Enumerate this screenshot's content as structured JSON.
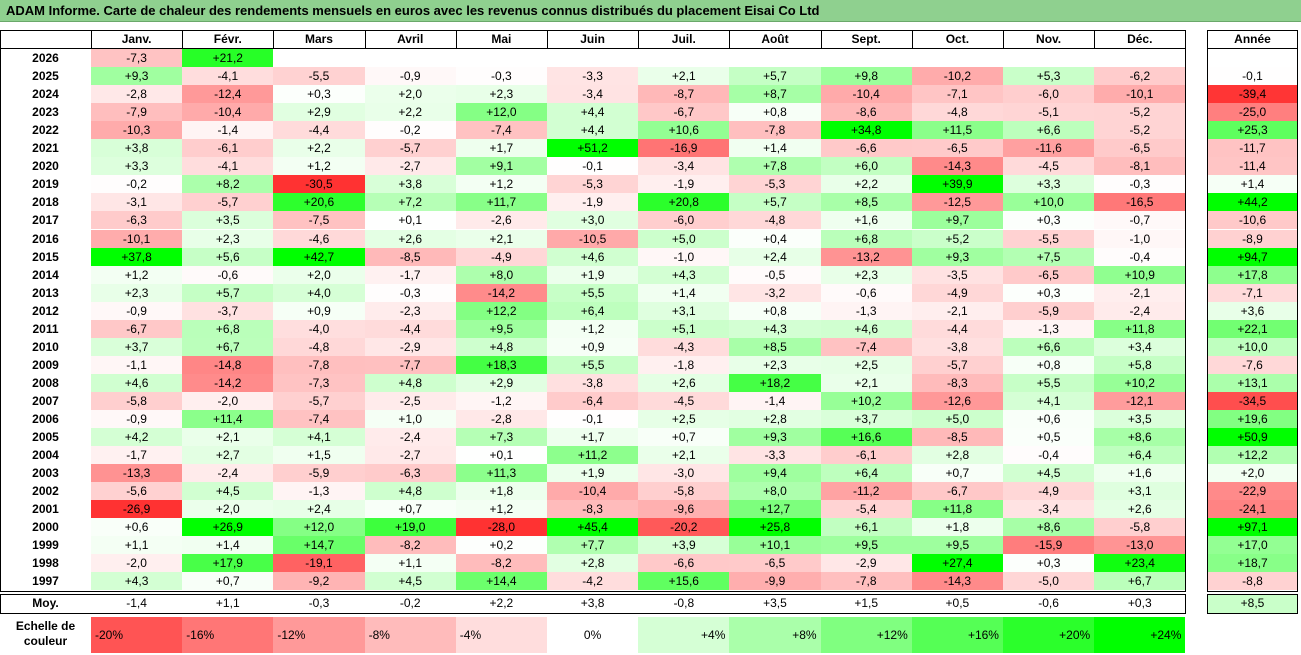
{
  "title": "ADAM Informe. Carte de chaleur des rendements mensuels en euros avec les revenus connus distribués du placement Eisai Co Ltd",
  "chart_data": {
    "type": "heatmap",
    "months": [
      "Janv.",
      "Févr.",
      "Mars",
      "Avril",
      "Mai",
      "Juin",
      "Juil.",
      "Août",
      "Sept.",
      "Oct.",
      "Nov.",
      "Déc."
    ],
    "year_col_label": "Année",
    "avg_label": "Moy.",
    "rows": [
      {
        "year": "2026",
        "m": [
          "-7,3",
          "+21,2",
          null,
          null,
          null,
          null,
          null,
          null,
          null,
          null,
          null,
          null
        ],
        "total": null
      },
      {
        "year": "2025",
        "m": [
          "+9,3",
          "-4,1",
          "-5,5",
          "-0,9",
          "-0,3",
          "-3,3",
          "+2,1",
          "+5,7",
          "+9,8",
          "-10,2",
          "+5,3",
          "-6,2"
        ],
        "total": "-0,1"
      },
      {
        "year": "2024",
        "m": [
          "-2,8",
          "-12,4",
          "+0,3",
          "+2,0",
          "+2,3",
          "-3,4",
          "-8,7",
          "+8,7",
          "-10,4",
          "-7,1",
          "-6,0",
          "-10,1"
        ],
        "total": "-39,4"
      },
      {
        "year": "2023",
        "m": [
          "-7,9",
          "-10,4",
          "+2,9",
          "+2,2",
          "+12,0",
          "+4,4",
          "-6,7",
          "+0,8",
          "-8,6",
          "-4,8",
          "-5,1",
          "-5,2"
        ],
        "total": "-25,0"
      },
      {
        "year": "2022",
        "m": [
          "-10,3",
          "-1,4",
          "-4,4",
          "-0,2",
          "-7,4",
          "+4,4",
          "+10,6",
          "-7,8",
          "+34,8",
          "+11,5",
          "+6,6",
          "-5,2"
        ],
        "total": "+25,3"
      },
      {
        "year": "2021",
        "m": [
          "+3,8",
          "-6,1",
          "+2,2",
          "-5,7",
          "+1,7",
          "+51,2",
          "-16,9",
          "+1,4",
          "-6,6",
          "-6,5",
          "-11,6",
          "-6,5"
        ],
        "total": "-11,7"
      },
      {
        "year": "2020",
        "m": [
          "+3,3",
          "-4,1",
          "+1,2",
          "-2,7",
          "+9,1",
          "-0,1",
          "-3,4",
          "+7,8",
          "+6,0",
          "-14,3",
          "-4,5",
          "-8,1"
        ],
        "total": "-11,4"
      },
      {
        "year": "2019",
        "m": [
          "-0,2",
          "+8,2",
          "-30,5",
          "+3,8",
          "+1,2",
          "-5,3",
          "-1,9",
          "-5,3",
          "+2,2",
          "+39,9",
          "+3,3",
          "-0,3"
        ],
        "total": "+1,4"
      },
      {
        "year": "2018",
        "m": [
          "-3,1",
          "-5,7",
          "+20,6",
          "+7,2",
          "+11,7",
          "-1,9",
          "+20,8",
          "+5,7",
          "+8,5",
          "-12,5",
          "+10,0",
          "-16,5"
        ],
        "total": "+44,2"
      },
      {
        "year": "2017",
        "m": [
          "-6,3",
          "+3,5",
          "-7,5",
          "+0,1",
          "-2,6",
          "+3,0",
          "-6,0",
          "-4,8",
          "+1,6",
          "+9,7",
          "+0,3",
          "-0,7"
        ],
        "total": "-10,6"
      },
      {
        "year": "2016",
        "m": [
          "-10,1",
          "+2,3",
          "-4,6",
          "+2,6",
          "+2,1",
          "-10,5",
          "+5,0",
          "+0,4",
          "+6,8",
          "+5,2",
          "-5,5",
          "-1,0"
        ],
        "total": "-8,9"
      },
      {
        "year": "2015",
        "m": [
          "+37,8",
          "+5,6",
          "+42,7",
          "-8,5",
          "-4,9",
          "+4,6",
          "-1,0",
          "+2,4",
          "-13,2",
          "+9,3",
          "+7,5",
          "-0,4"
        ],
        "total": "+94,7"
      },
      {
        "year": "2014",
        "m": [
          "+1,2",
          "-0,6",
          "+2,0",
          "-1,7",
          "+8,0",
          "+1,9",
          "+4,3",
          "-0,5",
          "+2,3",
          "-3,5",
          "-6,5",
          "+10,9"
        ],
        "total": "+17,8"
      },
      {
        "year": "2013",
        "m": [
          "+2,3",
          "+5,7",
          "+4,0",
          "-0,3",
          "-14,2",
          "+5,5",
          "+1,4",
          "-3,2",
          "-0,6",
          "-4,9",
          "+0,3",
          "-2,1"
        ],
        "total": "-7,1"
      },
      {
        "year": "2012",
        "m": [
          "-0,9",
          "-3,7",
          "+0,9",
          "-2,3",
          "+12,2",
          "+6,4",
          "+3,1",
          "+0,8",
          "-1,3",
          "-2,1",
          "-5,9",
          "-2,4"
        ],
        "total": "+3,6"
      },
      {
        "year": "2011",
        "m": [
          "-6,7",
          "+6,8",
          "-4,0",
          "-4,4",
          "+9,5",
          "+1,2",
          "+5,1",
          "+4,3",
          "+4,6",
          "-4,4",
          "-1,3",
          "+11,8"
        ],
        "total": "+22,1"
      },
      {
        "year": "2010",
        "m": [
          "+3,7",
          "+6,7",
          "-4,8",
          "-2,9",
          "+4,8",
          "+0,9",
          "-4,3",
          "+8,5",
          "-7,4",
          "-3,8",
          "+6,6",
          "+3,4"
        ],
        "total": "+10,0"
      },
      {
        "year": "2009",
        "m": [
          "-1,1",
          "-14,8",
          "-7,8",
          "-7,7",
          "+18,3",
          "+5,5",
          "-1,8",
          "+2,3",
          "+2,5",
          "-5,7",
          "+0,8",
          "+5,8"
        ],
        "total": "-7,6"
      },
      {
        "year": "2008",
        "m": [
          "+4,6",
          "-14,2",
          "-7,3",
          "+4,8",
          "+2,9",
          "-3,8",
          "+2,6",
          "+18,2",
          "+2,1",
          "-8,3",
          "+5,5",
          "+10,2"
        ],
        "total": "+13,1"
      },
      {
        "year": "2007",
        "m": [
          "-5,8",
          "-2,0",
          "-5,7",
          "-2,5",
          "-1,2",
          "-6,4",
          "-4,5",
          "-1,4",
          "+10,2",
          "-12,6",
          "+4,1",
          "-12,1"
        ],
        "total": "-34,5"
      },
      {
        "year": "2006",
        "m": [
          "-0,9",
          "+11,4",
          "-7,4",
          "+1,0",
          "-2,8",
          "-0,1",
          "+2,5",
          "+2,8",
          "+3,7",
          "+5,0",
          "+0,6",
          "+3,5"
        ],
        "total": "+19,6"
      },
      {
        "year": "2005",
        "m": [
          "+4,2",
          "+2,1",
          "+4,1",
          "-2,4",
          "+7,3",
          "+1,7",
          "+0,7",
          "+9,3",
          "+16,6",
          "-8,5",
          "+0,5",
          "+8,6"
        ],
        "total": "+50,9"
      },
      {
        "year": "2004",
        "m": [
          "-1,7",
          "+2,7",
          "+1,5",
          "-2,7",
          "+0,1",
          "+11,2",
          "+2,1",
          "-3,3",
          "-6,1",
          "+2,8",
          "-0,4",
          "+6,4"
        ],
        "total": "+12,2"
      },
      {
        "year": "2003",
        "m": [
          "-13,3",
          "-2,4",
          "-5,9",
          "-6,3",
          "+11,3",
          "+1,9",
          "-3,0",
          "+9,4",
          "+6,4",
          "+0,7",
          "+4,5",
          "+1,6"
        ],
        "total": "+2,0"
      },
      {
        "year": "2002",
        "m": [
          "-5,6",
          "+4,5",
          "-1,3",
          "+4,8",
          "+1,8",
          "-10,4",
          "-5,8",
          "+8,0",
          "-11,2",
          "-6,7",
          "-4,9",
          "+3,1"
        ],
        "total": "-22,9"
      },
      {
        "year": "2001",
        "m": [
          "-26,9",
          "+2,0",
          "+2,4",
          "+0,7",
          "+1,2",
          "-8,3",
          "-9,6",
          "+12,7",
          "-5,4",
          "+11,8",
          "-3,4",
          "+2,6"
        ],
        "total": "-24,1"
      },
      {
        "year": "2000",
        "m": [
          "+0,6",
          "+26,9",
          "+12,0",
          "+19,0",
          "-28,0",
          "+45,4",
          "-20,2",
          "+25,8",
          "+6,1",
          "+1,8",
          "+8,6",
          "-5,8"
        ],
        "total": "+97,1"
      },
      {
        "year": "1999",
        "m": [
          "+1,1",
          "+1,4",
          "+14,7",
          "-8,2",
          "+0,2",
          "+7,7",
          "+3,9",
          "+10,1",
          "+9,5",
          "+9,5",
          "-15,9",
          "-13,0"
        ],
        "total": "+17,0"
      },
      {
        "year": "1998",
        "m": [
          "-2,0",
          "+17,9",
          "-19,1",
          "+1,1",
          "-8,2",
          "+2,8",
          "-6,6",
          "-6,5",
          "-2,9",
          "+27,4",
          "+0,3",
          "+23,4"
        ],
        "total": "+18,7"
      },
      {
        "year": "1997",
        "m": [
          "+4,3",
          "+0,7",
          "-9,2",
          "+4,5",
          "+14,4",
          "-4,2",
          "+15,6",
          "-9,9",
          "-7,8",
          "-14,3",
          "-5,0",
          "+6,7"
        ],
        "total": "-8,8"
      }
    ],
    "averages": [
      "-1,4",
      "+1,1",
      "-0,3",
      "-0,2",
      "+2,2",
      "+3,8",
      "-0,8",
      "+3,5",
      "+1,5",
      "+0,5",
      "-0,6",
      "+0,3"
    ],
    "avg_total": "+8,5",
    "scale_label": "Echelle de couleur",
    "scale": [
      "-20%",
      "-16%",
      "-12%",
      "-8%",
      "-4%",
      "0%",
      "+4%",
      "+8%",
      "+12%",
      "+16%",
      "+20%",
      "+24%"
    ],
    "colors": {
      "negative": "#ff0000",
      "positive": "#00ff00",
      "neutral": "#ffffff",
      "title_bg": "#8fd08f"
    }
  }
}
